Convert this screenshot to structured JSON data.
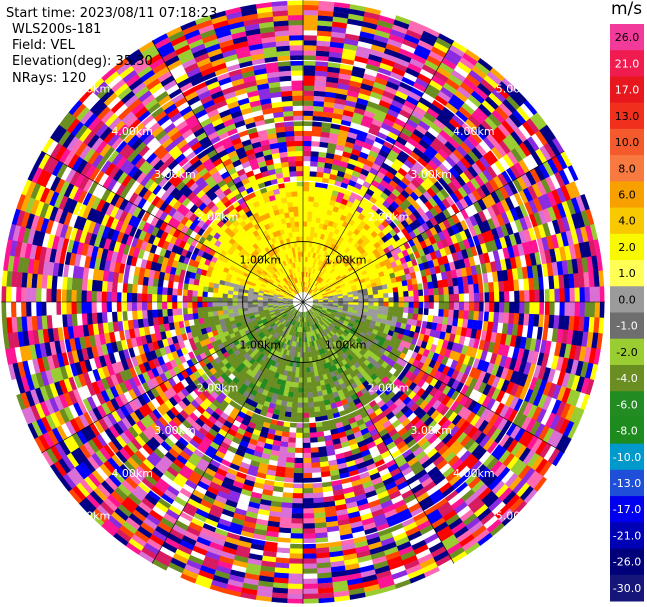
{
  "info": {
    "start_time": "Start time: 2023/08/11 07:18:23",
    "instrument": "WLS200s-181",
    "field": "Field: VEL",
    "elevation": "Elevation(deg): 35.30",
    "nrays": "NRays: 120"
  },
  "colorbar": {
    "unit": "m/s",
    "ticks": [
      "26.0",
      "21.0",
      "17.0",
      "13.0",
      "10.0",
      "8.0",
      "6.0",
      "4.0",
      "2.0",
      "1.0",
      "0.0",
      "-1.0",
      "-2.0",
      "-4.0",
      "-6.0",
      "-8.0",
      "-10.0",
      "-13.0",
      "-17.0",
      "-21.0",
      "-26.0",
      "-30.0"
    ],
    "colors": [
      "#f23a9a",
      "#f01c50",
      "#e8161d",
      "#f0301c",
      "#f45a2c",
      "#f87a40",
      "#f8a000",
      "#f8c800",
      "#f8f800",
      "#ffff55",
      "#9b9b9b",
      "#6e6e6e",
      "#9acd32",
      "#6b8e23",
      "#228b22",
      "#1e8b1e",
      "#0099cc",
      "#1f4fd8",
      "#0000ee",
      "#0000b4",
      "#00007a",
      "#15157a"
    ]
  },
  "range_labels": [
    "1.00km",
    "2.00km",
    "3.00km",
    "4.00km",
    "5.00km"
  ],
  "chart_data": {
    "type": "heatmap",
    "projection": "polar PPI",
    "field": "VEL",
    "unit": "m/s",
    "nrays": 120,
    "elevation_deg": 35.3,
    "range_rings_km": [
      1,
      2,
      3,
      4,
      5
    ],
    "max_range_km": 5.0,
    "value_range": [
      -30.0,
      26.0
    ],
    "pattern": {
      "near_field": "positive velocities (yellow/orange, ~2 to 6 m/s) north, near-zero gray and negative (olive/green, -2 to -6 m/s) south, out to ~1.5 km",
      "far_field": "noisy multicolor values beyond ~1.5 km"
    }
  }
}
